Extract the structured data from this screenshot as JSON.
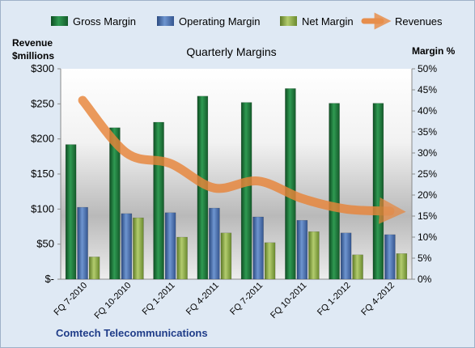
{
  "chart_data": {
    "type": "bar",
    "title": "Quarterly Margins",
    "left_axis_label_line1": "Revenue",
    "left_axis_label_line2": "$millions",
    "right_axis_label": "Margin %",
    "footer": "Comtech Telecommunications",
    "categories": [
      "FQ 7-2010",
      "FQ 10-2010",
      "FQ 1-2011",
      "FQ 4-2011",
      "FQ 7-2011",
      "FQ 10-2011",
      "FQ 1-2012",
      "FQ 4-2012"
    ],
    "left_ticks": [
      "$-",
      "$50",
      "$100",
      "$150",
      "$200",
      "$250",
      "$300"
    ],
    "right_ticks": [
      "0%",
      "5%",
      "10%",
      "15%",
      "20%",
      "25%",
      "30%",
      "35%",
      "40%",
      "45%",
      "50%"
    ],
    "ylim_left": [
      0,
      300
    ],
    "ylim_right": [
      0,
      50
    ],
    "legend_position": "top",
    "grid": false,
    "series": [
      {
        "name": "Gross Margin",
        "axis": "right",
        "kind": "bar",
        "color": "#1f7a3c",
        "values": [
          32,
          36,
          37.3,
          43.5,
          42,
          45.3,
          41.8,
          41.8
        ]
      },
      {
        "name": "Operating Margin",
        "axis": "right",
        "kind": "bar",
        "color": "#4a70b0",
        "values": [
          17.1,
          15.6,
          15.8,
          16.9,
          14.8,
          14,
          11,
          10.6
        ]
      },
      {
        "name": "Net Margin",
        "axis": "right",
        "kind": "bar",
        "color": "#8daa4a",
        "values": [
          5.3,
          14.6,
          10,
          11,
          8.7,
          11.3,
          5.8,
          6.1
        ]
      },
      {
        "name": "Revenues",
        "axis": "left",
        "kind": "line",
        "color": "#e8853a",
        "values": [
          255,
          180,
          165,
          130,
          140,
          115,
          100,
          97
        ]
      }
    ]
  }
}
